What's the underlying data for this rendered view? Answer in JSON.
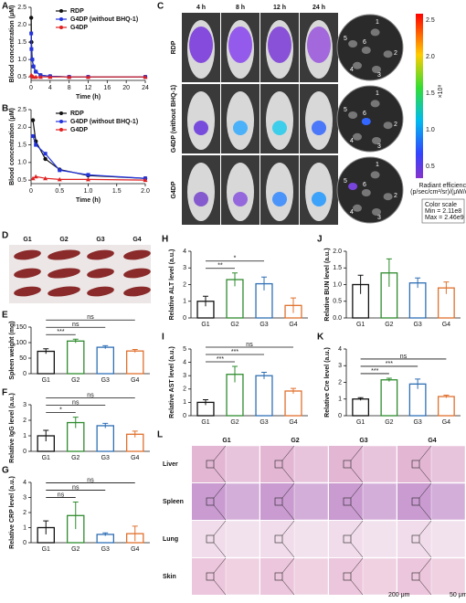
{
  "chart_data": [
    {
      "label": "A",
      "type": "line",
      "ylabel": "Blood concentration (μM)",
      "xlabel": "Time (h)",
      "x": [
        0.033,
        0.083,
        0.25,
        0.5,
        1,
        2,
        4,
        8,
        12,
        24
      ],
      "xlim": [
        0,
        24
      ],
      "xticks": [
        0,
        4,
        8,
        12,
        16,
        20,
        24
      ],
      "ylim": [
        0.4,
        2.5
      ],
      "yticks": [
        0.5,
        {
          "value": 1,
          "label": "1.0"
        },
        1.5,
        {
          "value": 2,
          "label": "2.0"
        },
        2.5
      ],
      "legend": "upper right",
      "series": [
        {
          "name": "RDP",
          "color": "#111111",
          "marker": "circle",
          "values": [
            2.2,
            1.5,
            1.0,
            0.8,
            0.65,
            0.55,
            0.52,
            0.5,
            0.5,
            0.5
          ]
        },
        {
          "name": "G4DP (without BHQ-1)",
          "color": "#2233dd",
          "marker": "square",
          "values": [
            1.75,
            1.3,
            1.0,
            0.8,
            0.65,
            0.55,
            0.52,
            0.5,
            0.5,
            0.5
          ]
        },
        {
          "name": "G4DP",
          "color": "#e02020",
          "marker": "triangle",
          "values": [
            0.55,
            0.55,
            0.52,
            0.5,
            0.5,
            0.5,
            0.5,
            0.5,
            0.5,
            0.5
          ]
        }
      ]
    },
    {
      "label": "B",
      "type": "line",
      "ylabel": "Blood concentration (μM)",
      "xlabel": "Time (h)",
      "x": [
        0.033,
        0.083,
        0.25,
        0.5,
        1,
        2
      ],
      "xlim": [
        0,
        2
      ],
      "xticks": [
        0,
        0.5,
        {
          "value": 1,
          "label": "1.0"
        },
        1.5,
        {
          "value": 2,
          "label": "2.0"
        }
      ],
      "ylim": [
        0.4,
        2.5
      ],
      "yticks": [
        0.5,
        {
          "value": 1,
          "label": "1.0"
        },
        1.5,
        {
          "value": 2,
          "label": "2.0"
        },
        2.5
      ],
      "legend": "upper right",
      "series": [
        {
          "name": "RDP",
          "color": "#111111",
          "marker": "circle",
          "values": [
            2.2,
            1.6,
            1.1,
            0.8,
            0.63,
            0.55
          ]
        },
        {
          "name": "G4DP (without BHQ-1)",
          "color": "#2233dd",
          "marker": "square",
          "values": [
            1.75,
            1.5,
            1.25,
            0.78,
            0.65,
            0.55
          ]
        },
        {
          "name": "G4DP",
          "color": "#e02020",
          "marker": "triangle",
          "values": [
            0.55,
            0.6,
            0.55,
            0.52,
            0.52,
            0.5
          ]
        }
      ]
    },
    {
      "label": "E",
      "type": "bar",
      "ylabel": "Spleen weight (mg)",
      "categories": [
        "G1",
        "G2",
        "G3",
        "G4"
      ],
      "colors": [
        "#111111",
        "#2e8b2e",
        "#2f6fb5",
        "#e0702c"
      ],
      "values": [
        72,
        105,
        85,
        73
      ],
      "errors": [
        8,
        6,
        5,
        5
      ],
      "ylim": [
        0,
        150
      ],
      "yticks": [
        0,
        50,
        100,
        150
      ],
      "annotations": [
        {
          "text": "***",
          "between": [
            "G1",
            "G2"
          ]
        },
        {
          "text": "ns",
          "between": [
            "G1",
            "G3"
          ]
        },
        {
          "text": "ns",
          "between": [
            "G1",
            "G4"
          ]
        }
      ]
    },
    {
      "label": "F",
      "type": "bar",
      "ylabel": "Relative IgG level (a.u.)",
      "categories": [
        "G1",
        "G2",
        "G3",
        "G4"
      ],
      "colors": [
        "#111111",
        "#2e8b2e",
        "#2f6fb5",
        "#e0702c"
      ],
      "values": [
        1.0,
        1.85,
        1.65,
        1.1
      ],
      "errors": [
        0.35,
        0.35,
        0.15,
        0.2
      ],
      "ylim": [
        0,
        3
      ],
      "yticks": [
        0,
        1,
        2,
        3
      ],
      "annotations": [
        {
          "text": "*",
          "between": [
            "G1",
            "G2"
          ]
        },
        {
          "text": "ns",
          "between": [
            "G1",
            "G3"
          ]
        },
        {
          "text": "ns",
          "between": [
            "G1",
            "G4"
          ]
        }
      ]
    },
    {
      "label": "G",
      "type": "bar",
      "ylabel": "Relative CRP level (a.u.)",
      "categories": [
        "G1",
        "G2",
        "G3",
        "G4"
      ],
      "colors": [
        "#111111",
        "#2e8b2e",
        "#2f6fb5",
        "#e0702c"
      ],
      "values": [
        1.0,
        1.8,
        0.55,
        0.6
      ],
      "errors": [
        0.45,
        0.9,
        0.1,
        0.5
      ],
      "ylim": [
        0,
        4
      ],
      "yticks": [
        0,
        1,
        2,
        3,
        4
      ],
      "annotations": [
        {
          "text": "ns",
          "between": [
            "G1",
            "G2"
          ]
        },
        {
          "text": "ns",
          "between": [
            "G1",
            "G3"
          ]
        },
        {
          "text": "ns",
          "between": [
            "G1",
            "G4"
          ]
        }
      ]
    },
    {
      "label": "H",
      "type": "bar",
      "ylabel": "Relative ALT level (a.u.)",
      "categories": [
        "G1",
        "G2",
        "G3",
        "G4"
      ],
      "colors": [
        "#111111",
        "#2e8b2e",
        "#2f6fb5",
        "#e0702c"
      ],
      "values": [
        1.0,
        2.3,
        2.05,
        0.75
      ],
      "errors": [
        0.3,
        0.4,
        0.4,
        0.45
      ],
      "ylim": [
        0,
        4
      ],
      "yticks": [
        0,
        1,
        2,
        3,
        4
      ],
      "annotations": [
        {
          "text": "**",
          "between": [
            "G1",
            "G2"
          ]
        },
        {
          "text": "*",
          "between": [
            "G1",
            "G3"
          ]
        }
      ]
    },
    {
      "label": "J",
      "type": "bar",
      "ylabel": "Relative BUN level (a.u.)",
      "categories": [
        "G1",
        "G2",
        "G3",
        "G4"
      ],
      "colors": [
        "#111111",
        "#2e8b2e",
        "#2f6fb5",
        "#e0702c"
      ],
      "values": [
        1.0,
        1.35,
        1.05,
        0.9
      ],
      "errors": [
        0.28,
        0.42,
        0.15,
        0.18
      ],
      "ylim": [
        0,
        2
      ],
      "yticks": [
        {
          "value": 0,
          "label": "0.0"
        },
        0.5,
        {
          "value": 1,
          "label": "1.0"
        },
        1.5,
        {
          "value": 2,
          "label": "2.0"
        }
      ],
      "annotations": []
    },
    {
      "label": "I",
      "type": "bar",
      "ylabel": "Relative AST level (a.u.)",
      "categories": [
        "G1",
        "G2",
        "G3",
        "G4"
      ],
      "colors": [
        "#111111",
        "#2e8b2e",
        "#2f6fb5",
        "#e0702c"
      ],
      "values": [
        1.0,
        3.1,
        3.0,
        1.85
      ],
      "errors": [
        0.2,
        0.6,
        0.25,
        0.2
      ],
      "ylim": [
        0,
        5
      ],
      "yticks": [
        0,
        1,
        2,
        3,
        4,
        5
      ],
      "annotations": [
        {
          "text": "***",
          "between": [
            "G1",
            "G2"
          ]
        },
        {
          "text": "***",
          "between": [
            "G1",
            "G3"
          ]
        },
        {
          "text": "ns",
          "between": [
            "G1",
            "G4"
          ]
        }
      ]
    },
    {
      "label": "K",
      "type": "bar",
      "ylabel": "Relative Cre level (a.u.)",
      "categories": [
        "G1",
        "G2",
        "G3",
        "G4"
      ],
      "colors": [
        "#111111",
        "#2e8b2e",
        "#2f6fb5",
        "#e0702c"
      ],
      "values": [
        1.0,
        2.15,
        1.9,
        1.15
      ],
      "errors": [
        0.08,
        0.1,
        0.3,
        0.08
      ],
      "ylim": [
        0,
        4
      ],
      "yticks": [
        0,
        1,
        2,
        3,
        4
      ],
      "annotations": [
        {
          "text": "***",
          "between": [
            "G1",
            "G2"
          ]
        },
        {
          "text": "***",
          "between": [
            "G1",
            "G3"
          ]
        },
        {
          "text": "ns",
          "between": [
            "G1",
            "G4"
          ]
        }
      ]
    }
  ],
  "imaging": {
    "label": "C",
    "times": [
      "4 h",
      "8 h",
      "12 h",
      "24 h"
    ],
    "rows": [
      "RDP",
      "G4DP (without BHQ-1)",
      "G4DP"
    ],
    "organs": [
      "1",
      "2",
      "3",
      "4",
      "5",
      "6"
    ],
    "colorbar_ticks": [
      "2.5",
      "2.0",
      "1.5",
      "1.0",
      "0.5"
    ],
    "unit": "×10⁸",
    "colorbar_title": "Radiant efficiency",
    "colorbar_units": "(p/sec/cm²/sr)/(μW/cm²)",
    "scale_note": [
      "Color scale",
      "Min = 2.11e8",
      "Max = 2.46e9"
    ]
  },
  "spleens": {
    "label": "D",
    "groups": [
      "G1",
      "G2",
      "G3",
      "G4"
    ]
  },
  "histology": {
    "label": "L",
    "groups": [
      "G1",
      "G2",
      "G3",
      "G4"
    ],
    "tissues": [
      "Liver",
      "Spleen",
      "Lung",
      "Skin"
    ],
    "scale_bars": [
      "200 μm",
      "50 μm"
    ]
  }
}
